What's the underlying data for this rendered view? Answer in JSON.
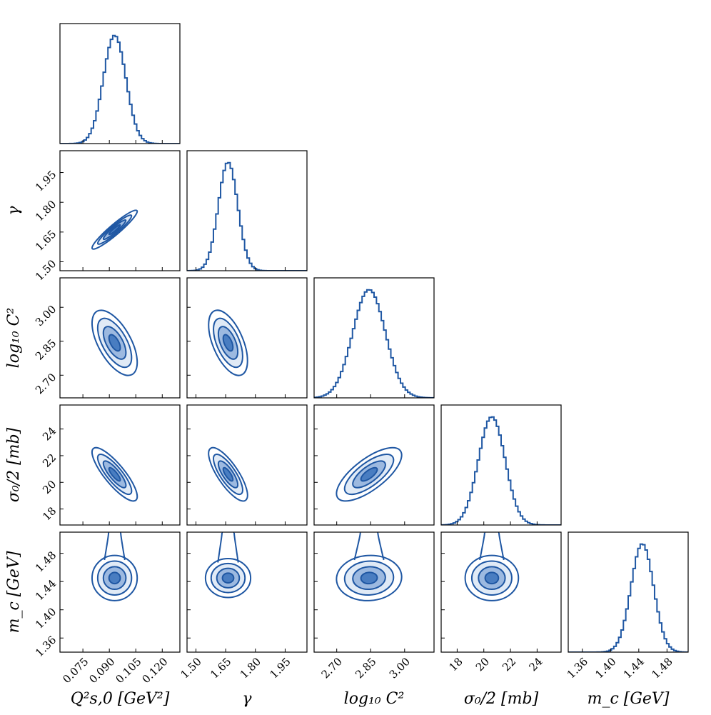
{
  "colors": {
    "line": "#1f57a3",
    "fill_light": "#dbe6f5",
    "fill_mid": "#8fb0dc",
    "fill_dark": "#3b72bb"
  },
  "chart_data": {
    "type": "corner",
    "title": "",
    "parameters": [
      {
        "name": "Qs0",
        "label": "Q²s,0 [GeV²]",
        "range": [
          0.062,
          0.13
        ],
        "ticks": [
          0.075,
          0.09,
          0.105,
          0.12
        ],
        "tick_labels": [
          "0.075",
          "0.090",
          "0.105",
          "0.120"
        ],
        "mean": 0.093,
        "sd": 0.0064
      },
      {
        "name": "gamma",
        "label": "γ",
        "range": [
          1.455,
          2.06
        ],
        "ticks": [
          1.5,
          1.65,
          1.8,
          1.95
        ],
        "tick_labels": [
          "1.50",
          "1.65",
          "1.80",
          "1.95"
        ],
        "mean": 1.662,
        "sd": 0.049
      },
      {
        "name": "log10C2",
        "label": "log₁₀ C²",
        "range": [
          2.6,
          3.13
        ],
        "ticks": [
          2.7,
          2.85,
          3.0
        ],
        "tick_labels": [
          "2.70",
          "2.85",
          "3.00"
        ],
        "mean": 2.843,
        "sd": 0.072
      },
      {
        "name": "sigma0",
        "label": "σ₀/2 [mb]",
        "range": [
          16.8,
          25.8
        ],
        "ticks": [
          18,
          20,
          22,
          24
        ],
        "tick_labels": [
          "18",
          "20",
          "22",
          "24"
        ],
        "mean": 20.6,
        "sd": 1.0
      },
      {
        "name": "mc",
        "label": "m_c [GeV]",
        "range": [
          1.34,
          1.51
        ],
        "ticks": [
          1.36,
          1.4,
          1.44,
          1.48
        ],
        "tick_labels": [
          "1.36",
          "1.40",
          "1.44",
          "1.48"
        ],
        "mean": 1.445,
        "sd": 0.016
      }
    ],
    "correlations": [
      [
        1.0,
        0.94,
        -0.6,
        -0.83,
        0.0
      ],
      [
        0.94,
        1.0,
        -0.55,
        -0.78,
        0.0
      ],
      [
        -0.6,
        -0.55,
        1.0,
        0.72,
        0.05
      ],
      [
        -0.83,
        -0.78,
        0.72,
        1.0,
        0.0
      ],
      [
        0.0,
        0.0,
        0.05,
        0.0,
        1.0
      ]
    ],
    "contour_levels_sigma": [
      0.5,
      1.0,
      1.5,
      2.0
    ],
    "histogram_bins": 50
  }
}
